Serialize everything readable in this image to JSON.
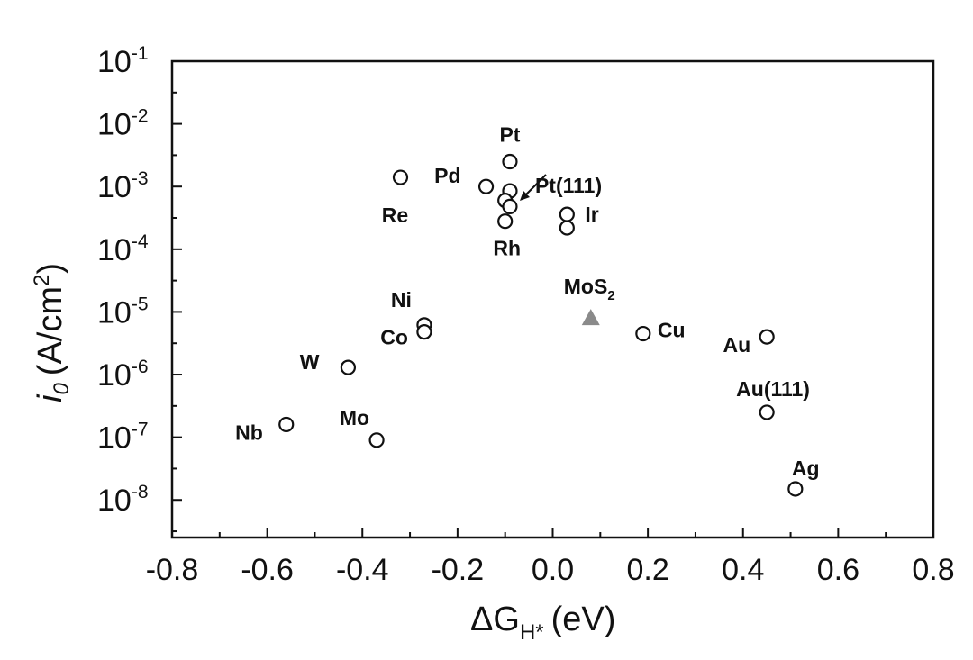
{
  "chart_data": {
    "type": "scatter",
    "xlabel": {
      "main": "ΔG",
      "sub": "H*",
      "unit": "(eV)"
    },
    "ylabel": {
      "italic": "i",
      "sub": "0",
      "unit": "(A/cm",
      "sup": "2",
      "close": ")"
    },
    "xlim": [
      -0.8,
      0.8
    ],
    "ylim_exponent": [
      -8.6,
      -1
    ],
    "y_scale": "log",
    "grid": false,
    "x_ticks": [
      "-0.8",
      "-0.6",
      "-0.4",
      "-0.2",
      "0.0",
      "0.2",
      "0.4",
      "0.6",
      "0.8"
    ],
    "y_ticks": [
      {
        "base": "10",
        "exp": "-1"
      },
      {
        "base": "10",
        "exp": "-2"
      },
      {
        "base": "10",
        "exp": "-3"
      },
      {
        "base": "10",
        "exp": "-4"
      },
      {
        "base": "10",
        "exp": "-5"
      },
      {
        "base": "10",
        "exp": "-6"
      },
      {
        "base": "10",
        "exp": "-7"
      },
      {
        "base": "10",
        "exp": "-8"
      }
    ],
    "points": [
      {
        "label": "Pt",
        "x": -0.09,
        "y": 0.0025,
        "marker": "circle"
      },
      {
        "label": "Pt(111)",
        "x": -0.09,
        "y": 0.00085,
        "marker": "circle"
      },
      {
        "label": "",
        "x": -0.1,
        "y": 0.0006,
        "marker": "circle"
      },
      {
        "label": "",
        "x": -0.09,
        "y": 0.00048,
        "marker": "circle"
      },
      {
        "label": "Rh",
        "x": -0.1,
        "y": 0.00028,
        "marker": "circle"
      },
      {
        "label": "Pd",
        "x": -0.14,
        "y": 0.001,
        "marker": "circle"
      },
      {
        "label": "Re",
        "x": -0.32,
        "y": 0.0014,
        "marker": "circle"
      },
      {
        "label": "Ir",
        "x": 0.03,
        "y": 0.00036,
        "marker": "circle"
      },
      {
        "label": "",
        "x": 0.03,
        "y": 0.00022,
        "marker": "circle"
      },
      {
        "label": "MoS",
        "label_sub": "2",
        "x": 0.08,
        "y": 8e-06,
        "marker": "triangle"
      },
      {
        "label": "Cu",
        "x": 0.19,
        "y": 4.5e-06,
        "marker": "circle"
      },
      {
        "label": "Au",
        "x": 0.45,
        "y": 4e-06,
        "marker": "circle"
      },
      {
        "label": "Au(111)",
        "x": 0.45,
        "y": 2.5e-07,
        "marker": "circle"
      },
      {
        "label": "Ag",
        "x": 0.51,
        "y": 1.5e-08,
        "marker": "circle"
      },
      {
        "label": "Ni",
        "x": -0.27,
        "y": 6.2e-06,
        "marker": "circle"
      },
      {
        "label": "Co",
        "x": -0.27,
        "y": 4.8e-06,
        "marker": "circle"
      },
      {
        "label": "W",
        "x": -0.43,
        "y": 1.3e-06,
        "marker": "circle"
      },
      {
        "label": "Nb",
        "x": -0.56,
        "y": 1.6e-07,
        "marker": "circle"
      },
      {
        "label": "Mo",
        "x": -0.37,
        "y": 9e-08,
        "marker": "circle"
      }
    ],
    "colors": {
      "circle_stroke": "#111111",
      "triangle_fill": "#8a8a8a",
      "axis": "#111111"
    }
  }
}
